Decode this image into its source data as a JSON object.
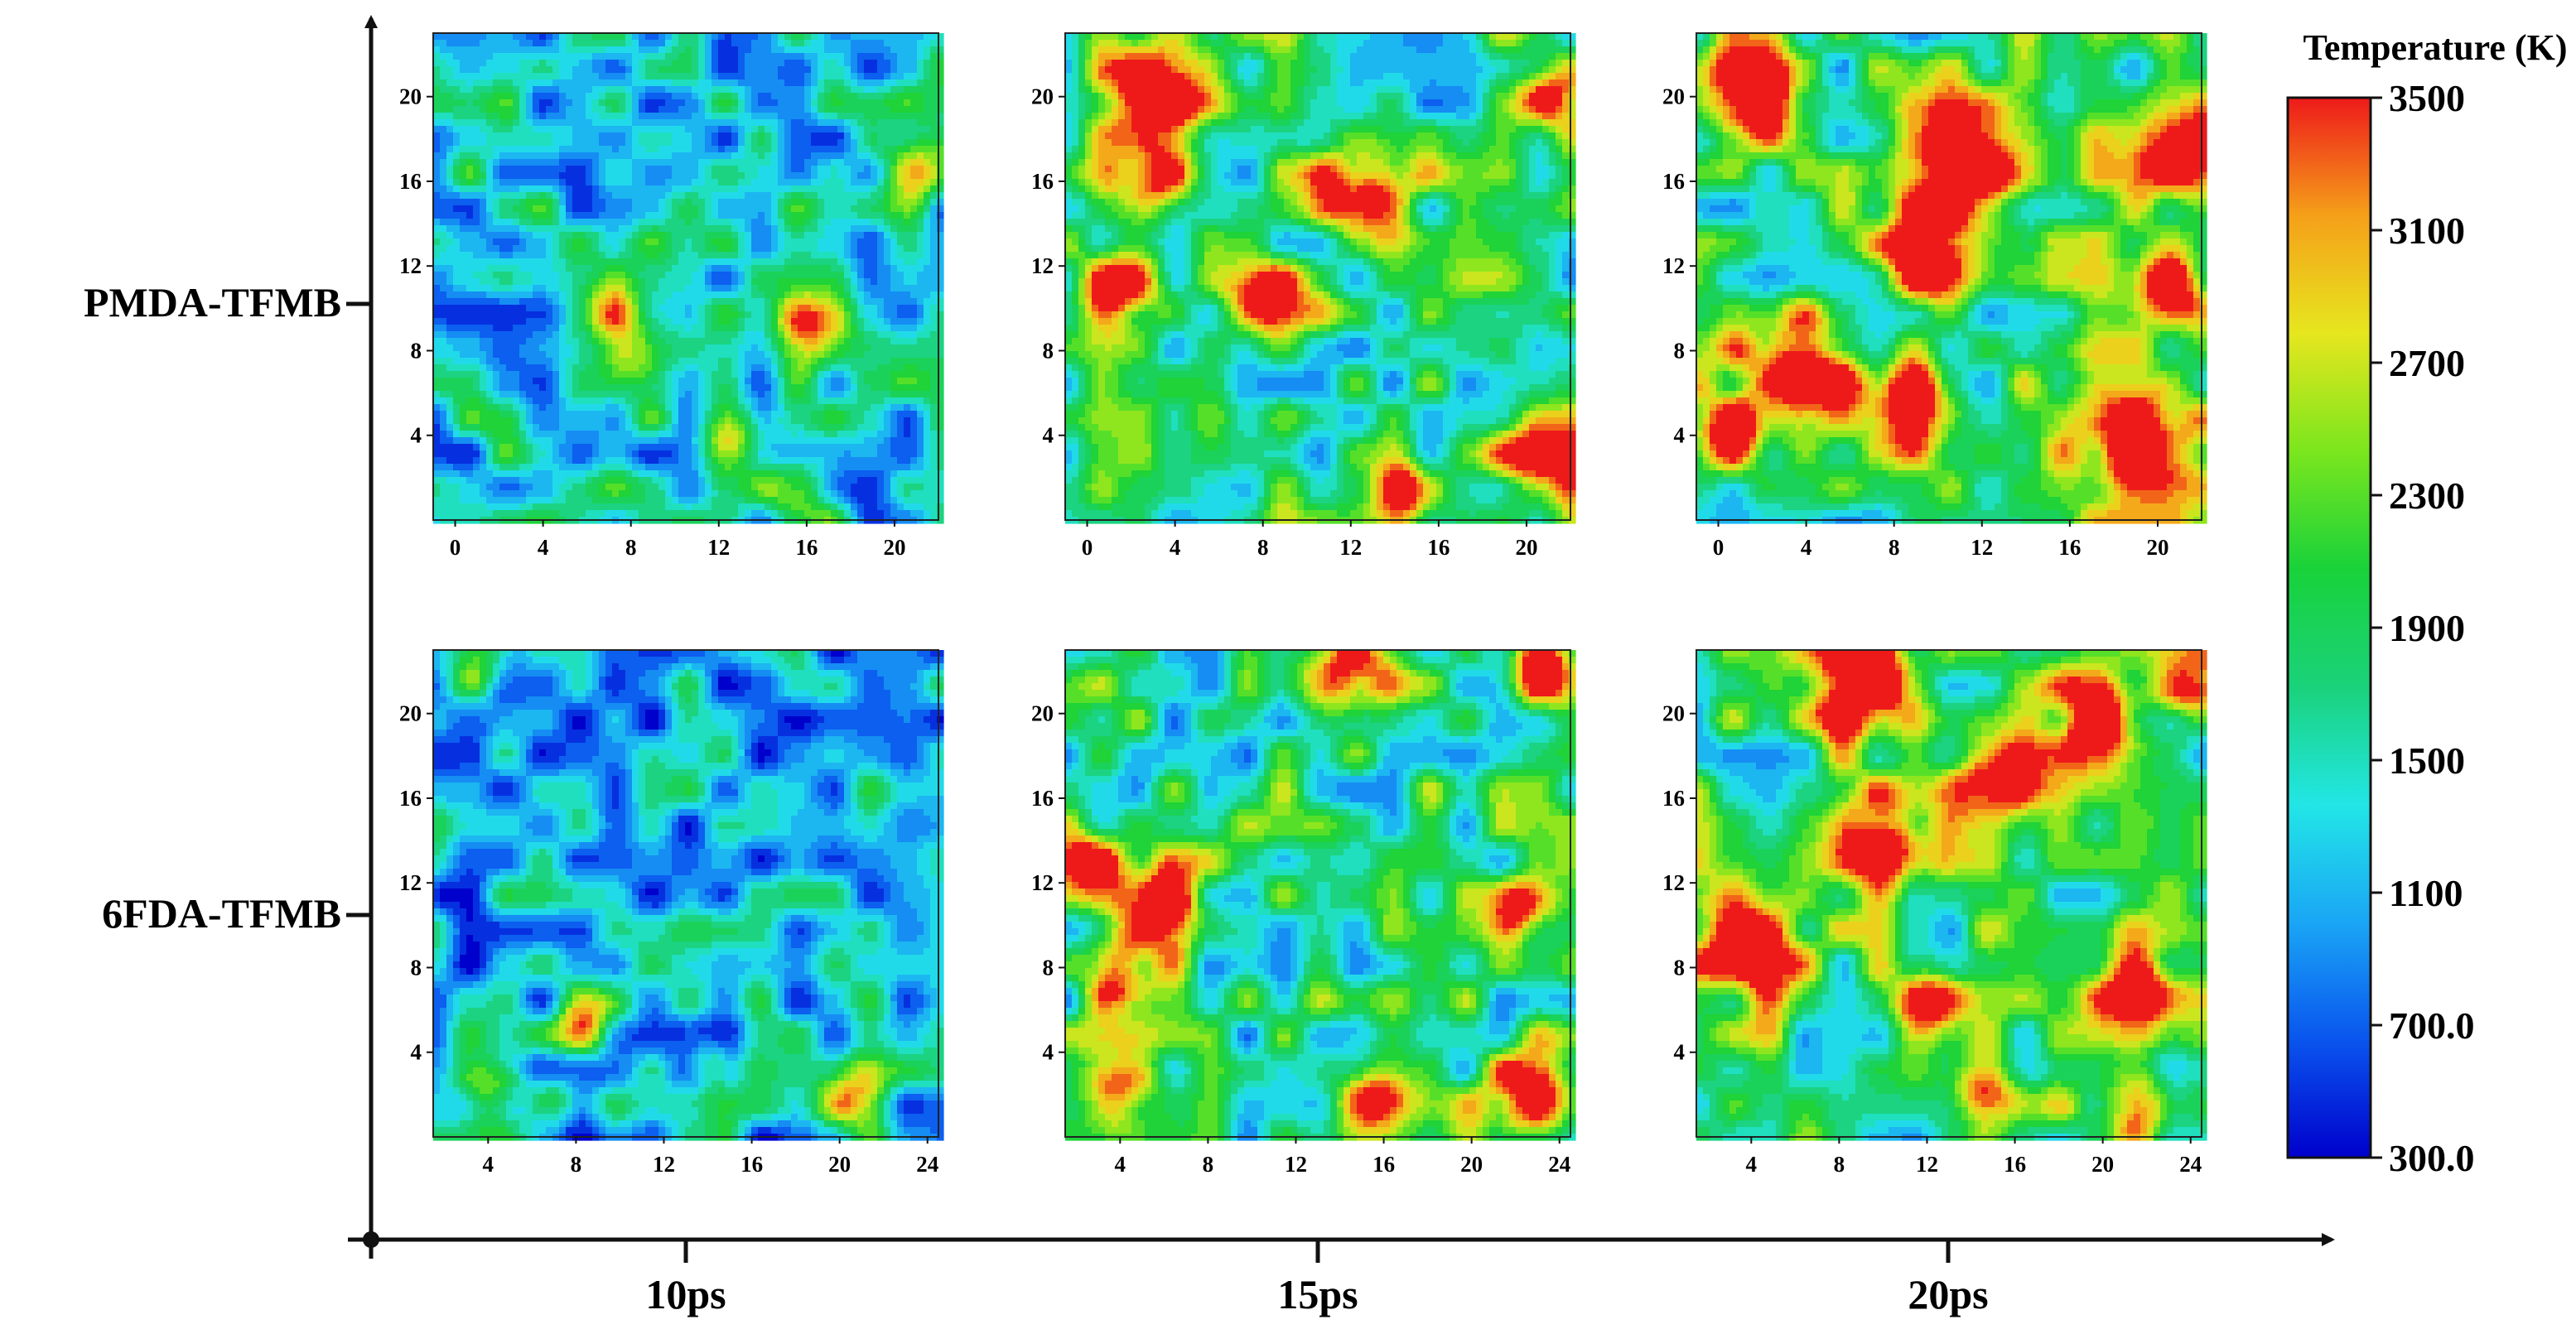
{
  "figure": {
    "row_labels": [
      "PMDA-TFMB",
      "6FDA-TFMB"
    ],
    "column_labels": [
      "10ps",
      "15ps",
      "20ps"
    ]
  },
  "colorbar": {
    "title": "Temperature (K)",
    "min": 300,
    "max": 3500,
    "tick_labels": [
      "3500",
      "3100",
      "2700",
      "2300",
      "1900",
      "1500",
      "1100",
      "700.0",
      "300.0"
    ],
    "colormap": [
      "#0000cc",
      "#0a55ee",
      "#1aa6f5",
      "#22e6e6",
      "#1ad27a",
      "#19d23a",
      "#7be61e",
      "#e6e61e",
      "#f5a019",
      "#ee1a1a"
    ]
  },
  "chart_data": [
    {
      "type": "heatmap",
      "row": "PMDA-TFMB",
      "time": "10ps",
      "x_ticks": [
        "0",
        "4",
        "8",
        "12",
        "16",
        "20"
      ],
      "y_ticks": [
        "4",
        "8",
        "12",
        "16",
        "20"
      ],
      "xlim": [
        -1,
        22
      ],
      "ylim": [
        0,
        23
      ],
      "grid_size": 14,
      "seed": 11,
      "base": 0.33,
      "amp": 0.3,
      "hot_scale": 0.6,
      "hotspots": [
        [
          16,
          9,
          1.8,
          0.55
        ],
        [
          12.5,
          4,
          1.6,
          0.45
        ],
        [
          21,
          16.5,
          1.6,
          0.5
        ],
        [
          8,
          8,
          1.6,
          0.4
        ],
        [
          15.5,
          1.5,
          1.5,
          0.45
        ],
        [
          7,
          10,
          1.3,
          0.35
        ]
      ]
    },
    {
      "type": "heatmap",
      "row": "PMDA-TFMB",
      "time": "15ps",
      "x_ticks": [
        "0",
        "4",
        "8",
        "12",
        "16",
        "20"
      ],
      "y_ticks": [
        "4",
        "8",
        "12",
        "16",
        "20"
      ],
      "xlim": [
        -1,
        22
      ],
      "ylim": [
        0,
        23
      ],
      "grid_size": 14,
      "seed": 27,
      "base": 0.46,
      "amp": 0.32,
      "hot_scale": 0.7,
      "hotspots": [
        [
          1.5,
          11,
          2.0,
          0.7
        ],
        [
          3,
          20,
          2.6,
          0.75
        ],
        [
          3,
          16,
          1.8,
          0.6
        ],
        [
          8,
          10.5,
          1.9,
          0.65
        ],
        [
          12.5,
          15.5,
          2.2,
          0.7
        ],
        [
          20.5,
          3,
          2.2,
          0.65
        ],
        [
          14.5,
          1.5,
          1.6,
          0.5
        ],
        [
          21,
          20,
          1.6,
          0.5
        ]
      ]
    },
    {
      "type": "heatmap",
      "row": "PMDA-TFMB",
      "time": "20ps",
      "x_ticks": [
        "0",
        "4",
        "8",
        "12",
        "16",
        "20"
      ],
      "y_ticks": [
        "4",
        "8",
        "12",
        "16",
        "20"
      ],
      "xlim": [
        -1,
        22
      ],
      "ylim": [
        0,
        23
      ],
      "grid_size": 14,
      "seed": 41,
      "base": 0.48,
      "amp": 0.32,
      "hot_scale": 0.75,
      "hotspots": [
        [
          1.5,
          20,
          2.2,
          0.7
        ],
        [
          10.5,
          16.5,
          3.2,
          0.8
        ],
        [
          9.5,
          12,
          2.0,
          0.7
        ],
        [
          19,
          4,
          3.0,
          0.8
        ],
        [
          3.5,
          7,
          2.6,
          0.8
        ],
        [
          8.5,
          5.5,
          2.0,
          0.7
        ],
        [
          21,
          17,
          2.4,
          0.7
        ],
        [
          0.5,
          4,
          1.8,
          0.6
        ],
        [
          20.5,
          11,
          1.8,
          0.6
        ]
      ]
    },
    {
      "type": "heatmap",
      "row": "6FDA-TFMB",
      "time": "10ps",
      "x_ticks": [
        "4",
        "8",
        "12",
        "16",
        "20",
        "24"
      ],
      "y_ticks": [
        "4",
        "8",
        "12",
        "16",
        "20"
      ],
      "xlim": [
        1.5,
        24.5
      ],
      "ylim": [
        0,
        23
      ],
      "grid_size": 14,
      "seed": 53,
      "base": 0.27,
      "amp": 0.3,
      "hot_scale": 0.55,
      "hotspots": [
        [
          4,
          2,
          1.6,
          0.5
        ],
        [
          8.5,
          5.5,
          1.5,
          0.45
        ],
        [
          20.5,
          2,
          1.5,
          0.45
        ],
        [
          3.5,
          23,
          1.6,
          0.55
        ],
        [
          14,
          3.5,
          1.2,
          0.3
        ],
        [
          7,
          2,
          1.2,
          0.3
        ]
      ]
    },
    {
      "type": "heatmap",
      "row": "6FDA-TFMB",
      "time": "15ps",
      "x_ticks": [
        "4",
        "8",
        "12",
        "16",
        "20",
        "24"
      ],
      "y_ticks": [
        "4",
        "8",
        "12",
        "16",
        "20"
      ],
      "xlim": [
        1.5,
        24.5
      ],
      "ylim": [
        0,
        23
      ],
      "grid_size": 14,
      "seed": 67,
      "base": 0.45,
      "amp": 0.32,
      "hot_scale": 0.7,
      "hotspots": [
        [
          14,
          22,
          2.2,
          0.75
        ],
        [
          5.5,
          11,
          2.2,
          0.65
        ],
        [
          4,
          8,
          1.6,
          0.6
        ],
        [
          23,
          22,
          1.8,
          0.7
        ],
        [
          22.5,
          2,
          2.2,
          0.7
        ],
        [
          15.5,
          2,
          1.7,
          0.6
        ],
        [
          4,
          2,
          1.8,
          0.6
        ],
        [
          2.5,
          13,
          1.6,
          0.55
        ],
        [
          22,
          11,
          1.4,
          0.5
        ]
      ]
    },
    {
      "type": "heatmap",
      "row": "6FDA-TFMB",
      "time": "20ps",
      "x_ticks": [
        "4",
        "8",
        "12",
        "16",
        "20",
        "24"
      ],
      "y_ticks": [
        "4",
        "8",
        "12",
        "16",
        "20"
      ],
      "xlim": [
        1.5,
        24.5
      ],
      "ylim": [
        0,
        23
      ],
      "grid_size": 14,
      "seed": 83,
      "base": 0.5,
      "amp": 0.32,
      "hot_scale": 0.75,
      "hotspots": [
        [
          9,
          21.5,
          2.6,
          0.8
        ],
        [
          19.5,
          19.5,
          2.2,
          0.75
        ],
        [
          10,
          14,
          2.2,
          0.75
        ],
        [
          15,
          17,
          2.0,
          0.65
        ],
        [
          4,
          9,
          2.6,
          0.7
        ],
        [
          21.5,
          7,
          2.0,
          0.65
        ],
        [
          12,
          6.5,
          1.6,
          0.55
        ],
        [
          21.5,
          1.5,
          1.6,
          0.55
        ],
        [
          24,
          21,
          1.6,
          0.55
        ],
        [
          14.5,
          2.5,
          1.6,
          0.5
        ]
      ]
    }
  ]
}
